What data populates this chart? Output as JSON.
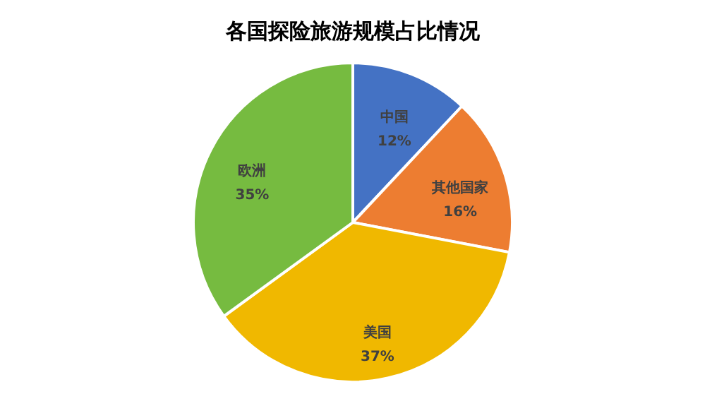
{
  "chart_data": {
    "type": "pie",
    "title": "各国探险旅游规模占比情况",
    "categories": [
      "中国",
      "其他国家",
      "美国",
      "欧洲"
    ],
    "values": [
      12,
      16,
      37,
      35
    ],
    "colors": [
      "#4472c4",
      "#ed7d31",
      "#f0b800",
      "#76bb40"
    ],
    "value_labels": [
      "12%",
      "16%",
      "37%",
      "35%"
    ]
  }
}
